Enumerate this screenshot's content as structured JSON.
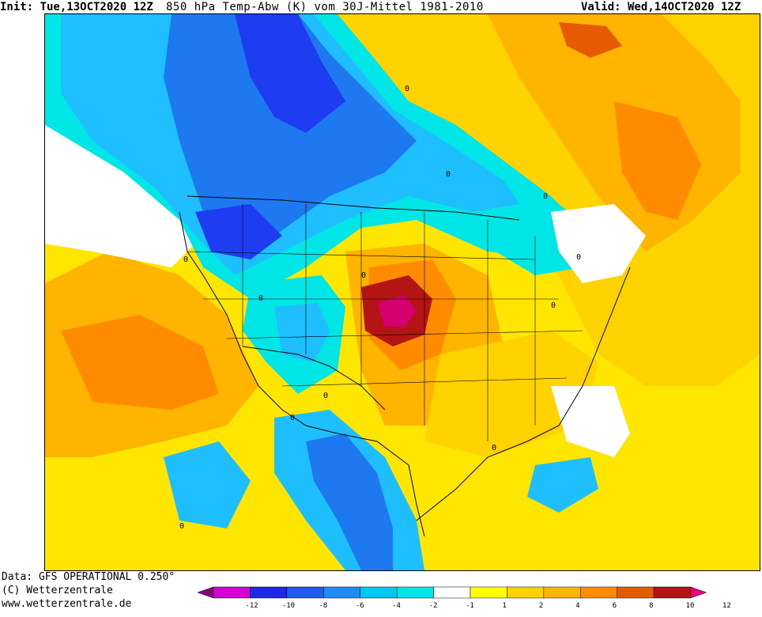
{
  "header": {
    "init": "Init: Tue,13OCT2020 12Z",
    "title": "850 hPa Temp-Abw (K) vom 30J-Mittel 1981-2010",
    "valid": "Valid: Wed,14OCT2020 12Z"
  },
  "footer": {
    "data_source": "Data: GFS OPERATIONAL 0.250°",
    "copyright": "(C) Wetterzentrale",
    "website": "www.wetterzentrale.de"
  },
  "legend": {
    "ticks": [
      "-12",
      "-10",
      "-8",
      "-6",
      "-4",
      "-2",
      "-1",
      "1",
      "2",
      "4",
      "6",
      "8",
      "10",
      "12"
    ],
    "colors": [
      "#8a007a",
      "#d400d4",
      "#1e28e6",
      "#1e5af0",
      "#1e8cf5",
      "#00c8f0",
      "#00e6e6",
      "#ffffff",
      "#ffff00",
      "#ffd200",
      "#ffb400",
      "#ff8c00",
      "#e65a00",
      "#b41414",
      "#e6007a"
    ]
  },
  "map": {
    "contour_labels": [
      "0",
      "0",
      "0",
      "0",
      "0",
      "0",
      "0",
      "0",
      "0",
      "0",
      "0",
      "0"
    ],
    "colors": {
      "ocean_warm": "#ffe600",
      "orange": "#ffb400",
      "dark_orange": "#ff8c00",
      "red": "#b41414",
      "magenta": "#d4006e",
      "cyan": "#00e6e6",
      "light_blue": "#1ebeff",
      "blue": "#1e78f0",
      "deep_blue": "#1e3cf0",
      "neutral": "#ffffff"
    }
  }
}
